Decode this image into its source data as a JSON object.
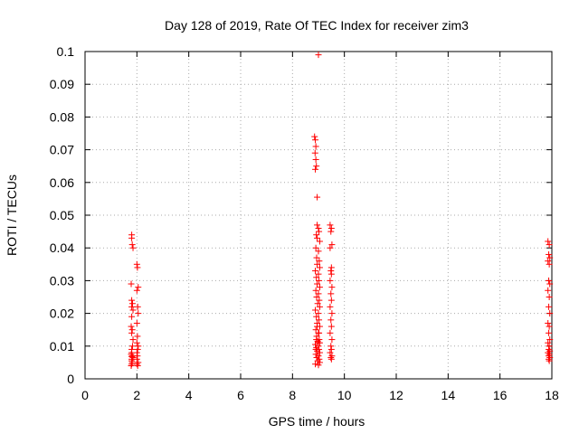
{
  "chart_data": {
    "type": "scatter",
    "title": "Day 128 of 2019, Rate Of TEC Index for receiver zim3",
    "xlabel": "GPS time / hours",
    "ylabel": "ROTI / TECUs",
    "xlim": [
      0,
      18
    ],
    "ylim": [
      0,
      0.1
    ],
    "xticks": [
      "0",
      "2",
      "4",
      "6",
      "8",
      "10",
      "12",
      "14",
      "16",
      "18"
    ],
    "yticks": [
      "0",
      "0.01",
      "0.02",
      "0.03",
      "0.04",
      "0.05",
      "0.06",
      "0.07",
      "0.08",
      "0.09",
      "0.1"
    ],
    "grid": true,
    "marker": "+",
    "color": "#ff0000",
    "series": [
      {
        "x": [
          1.8,
          1.8,
          1.82,
          1.85,
          1.78,
          1.8,
          1.83,
          1.8,
          1.85,
          1.8,
          1.78,
          1.82,
          1.8,
          1.85,
          1.83,
          1.8,
          1.8,
          1.78,
          1.82,
          1.8,
          1.85,
          1.8,
          1.8,
          1.82,
          1.8,
          1.78,
          2.0,
          2.02,
          2.05,
          2.0,
          2.03,
          2.05,
          2.0,
          2.02,
          2.0,
          2.05,
          2.03,
          2.0,
          2.02,
          2.0,
          2.05,
          2.0,
          2.03
        ],
        "y": [
          0.044,
          0.043,
          0.041,
          0.04,
          0.029,
          0.024,
          0.023,
          0.022,
          0.021,
          0.019,
          0.016,
          0.015,
          0.014,
          0.012,
          0.01,
          0.009,
          0.008,
          0.0075,
          0.007,
          0.0068,
          0.0065,
          0.006,
          0.0055,
          0.005,
          0.0045,
          0.004,
          0.035,
          0.034,
          0.028,
          0.027,
          0.022,
          0.02,
          0.017,
          0.013,
          0.011,
          0.01,
          0.009,
          0.008,
          0.007,
          0.006,
          0.005,
          0.0045,
          0.004
        ]
      },
      {
        "x": [
          8.85,
          8.88,
          8.9,
          8.87,
          8.9,
          8.92,
          8.88,
          8.95,
          9.0,
          8.95,
          9.0,
          9.02,
          8.92,
          8.95,
          9.05,
          8.9,
          9.0,
          8.93,
          9.03,
          8.95,
          9.05,
          8.88,
          9.0,
          8.92,
          9.02,
          8.95,
          9.05,
          8.9,
          9.0,
          8.93,
          9.03,
          8.97,
          9.05,
          8.88,
          9.0,
          8.92,
          9.02,
          8.95,
          9.05,
          8.9,
          9.0,
          8.93,
          9.03,
          8.97,
          9.05,
          8.88,
          9.0,
          8.92,
          9.02,
          8.95,
          9.05,
          8.9,
          9.0,
          8.93,
          9.03,
          8.97,
          9.05,
          8.88,
          9.0,
          8.92,
          9.02,
          8.95,
          8.9,
          9.0,
          9.45,
          9.5,
          9.48,
          9.52,
          9.45,
          9.5,
          9.48,
          9.5,
          9.45,
          9.52,
          9.48,
          9.5,
          9.45,
          9.52,
          9.48,
          9.5,
          9.45,
          9.52,
          9.48,
          9.5,
          9.45,
          9.52,
          9.48,
          9.5
        ],
        "y": [
          0.074,
          0.073,
          0.071,
          0.069,
          0.067,
          0.065,
          0.064,
          0.0555,
          0.099,
          0.047,
          0.046,
          0.045,
          0.044,
          0.043,
          0.042,
          0.04,
          0.039,
          0.037,
          0.036,
          0.035,
          0.034,
          0.033,
          0.032,
          0.031,
          0.03,
          0.029,
          0.028,
          0.027,
          0.026,
          0.025,
          0.024,
          0.023,
          0.022,
          0.021,
          0.02,
          0.019,
          0.018,
          0.017,
          0.016,
          0.015,
          0.014,
          0.013,
          0.012,
          0.0115,
          0.011,
          0.0105,
          0.01,
          0.0095,
          0.009,
          0.0085,
          0.008,
          0.0075,
          0.007,
          0.0065,
          0.006,
          0.0055,
          0.005,
          0.0045,
          0.0042,
          0.012,
          0.014,
          0.016,
          0.009,
          0.011,
          0.047,
          0.046,
          0.045,
          0.041,
          0.04,
          0.034,
          0.033,
          0.032,
          0.03,
          0.028,
          0.026,
          0.024,
          0.022,
          0.02,
          0.018,
          0.016,
          0.014,
          0.012,
          0.01,
          0.009,
          0.008,
          0.007,
          0.0065,
          0.006
        ]
      },
      {
        "x": [
          17.85,
          17.9,
          17.88,
          17.92,
          17.85,
          17.9,
          17.88,
          17.92,
          17.85,
          17.9,
          17.88,
          17.92,
          17.85,
          17.9,
          17.88,
          17.92,
          17.85,
          17.9,
          17.88,
          17.92,
          17.85,
          17.9,
          17.88,
          17.92,
          17.88,
          17.9
        ],
        "y": [
          0.042,
          0.041,
          0.038,
          0.037,
          0.036,
          0.035,
          0.03,
          0.029,
          0.027,
          0.025,
          0.022,
          0.02,
          0.017,
          0.016,
          0.014,
          0.012,
          0.011,
          0.01,
          0.009,
          0.0085,
          0.008,
          0.0075,
          0.007,
          0.0065,
          0.006,
          0.0055
        ]
      }
    ]
  }
}
